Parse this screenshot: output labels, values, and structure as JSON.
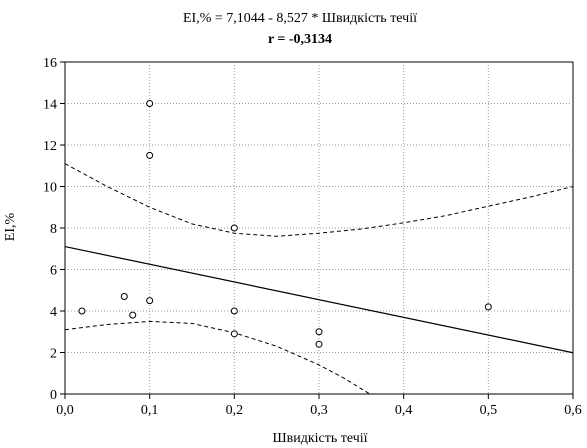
{
  "chart_data": {
    "type": "scatter",
    "title": "EI,% = 7,1044 - 8,527  * Швидкість течії",
    "subtitle": "r = -0,3134",
    "xlabel": "Швидкість течії",
    "ylabel": "EI,%",
    "xlim": [
      0,
      0.6
    ],
    "ylim": [
      0,
      16
    ],
    "xticks": [
      0,
      0.1,
      0.2,
      0.3,
      0.4,
      0.5,
      0.6
    ],
    "xtick_labels": [
      "0,0",
      "0,1",
      "0,2",
      "0,3",
      "0,4",
      "0,5",
      "0,6"
    ],
    "yticks": [
      0,
      2,
      4,
      6,
      8,
      10,
      12,
      14,
      16
    ],
    "ytick_labels": [
      "0",
      "2",
      "4",
      "6",
      "8",
      "10",
      "12",
      "14",
      "16"
    ],
    "grid": true,
    "series": [
      {
        "kind": "points",
        "x": [
          0.02,
          0.07,
          0.08,
          0.1,
          0.1,
          0.1,
          0.2,
          0.2,
          0.2,
          0.3,
          0.3,
          0.5
        ],
        "y": [
          4.0,
          4.7,
          3.8,
          14.0,
          11.5,
          4.5,
          8.0,
          4.0,
          2.9,
          3.0,
          2.4,
          4.2
        ]
      },
      {
        "kind": "regression-line",
        "intercept": 7.1044,
        "slope": -8.527
      },
      {
        "kind": "confidence-upper",
        "x": [
          0.0,
          0.05,
          0.1,
          0.15,
          0.2,
          0.25,
          0.3,
          0.35,
          0.4,
          0.45,
          0.5,
          0.55,
          0.6
        ],
        "y": [
          11.1,
          10.0,
          9.0,
          8.2,
          7.75,
          7.6,
          7.75,
          7.95,
          8.25,
          8.6,
          9.05,
          9.5,
          10.0
        ]
      },
      {
        "kind": "confidence-lower",
        "x": [
          0.0,
          0.05,
          0.1,
          0.15,
          0.2,
          0.25,
          0.3,
          0.33,
          0.36
        ],
        "y": [
          3.1,
          3.35,
          3.5,
          3.4,
          2.95,
          2.3,
          1.4,
          0.75,
          0.0
        ]
      }
    ]
  }
}
